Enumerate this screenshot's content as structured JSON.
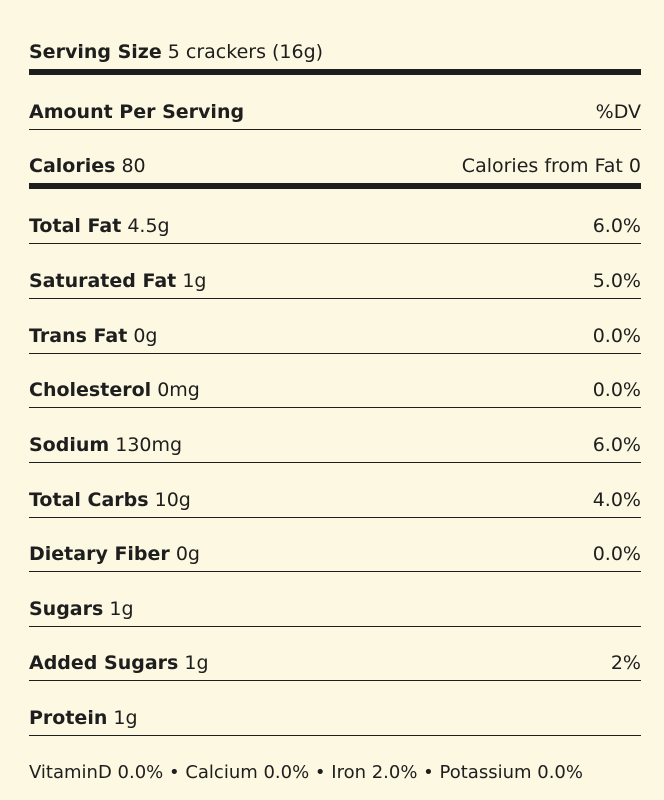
{
  "serving": {
    "label": "Serving Size",
    "value": "5 crackers (16g)"
  },
  "amount_per_serving": {
    "label": "Amount Per Serving",
    "dv_header": "%DV"
  },
  "calories": {
    "label": "Calories",
    "value": "80",
    "from_fat": "Calories from Fat 0"
  },
  "nutrients": [
    {
      "label": "Total Fat",
      "amount": "4.5g",
      "dv": "6.0%"
    },
    {
      "label": "Saturated Fat",
      "amount": "1g",
      "dv": "5.0%"
    },
    {
      "label": "Trans Fat",
      "amount": "0g",
      "dv": "0.0%"
    },
    {
      "label": "Cholesterol",
      "amount": "0mg",
      "dv": "0.0%"
    },
    {
      "label": "Sodium",
      "amount": "130mg",
      "dv": "6.0%"
    },
    {
      "label": "Total Carbs",
      "amount": "10g",
      "dv": "4.0%"
    },
    {
      "label": "Dietary Fiber",
      "amount": "0g",
      "dv": "0.0%"
    },
    {
      "label": "Sugars",
      "amount": "1g",
      "dv": ""
    },
    {
      "label": "Added Sugars",
      "amount": "1g",
      "dv": "2%"
    },
    {
      "label": "Protein",
      "amount": "1g",
      "dv": ""
    }
  ],
  "footer": "VitaminD 0.0% • Calcium 0.0% • Iron 2.0% • Potassium 0.0%",
  "colors": {
    "background": "#fcf8e1",
    "text": "#1e1e1e"
  }
}
